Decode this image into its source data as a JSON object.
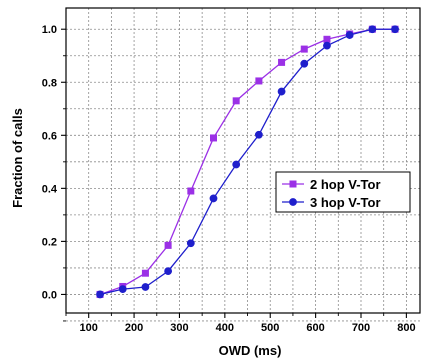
{
  "chart_data": {
    "type": "line",
    "xlabel": "OWD (ms)",
    "ylabel": "Fraction of calls",
    "xlim": [
      50,
      830
    ],
    "ylim": [
      -0.07,
      1.08
    ],
    "xticks": [
      100,
      200,
      300,
      400,
      500,
      600,
      700,
      800
    ],
    "yticks": [
      0.0,
      0.2,
      0.4,
      0.6,
      0.8,
      1.0
    ],
    "xtick_labels": [
      "100",
      "200",
      "300",
      "400",
      "500",
      "600",
      "700",
      "800"
    ],
    "ytick_labels": [
      "0.0",
      "0.2",
      "0.4",
      "0.6",
      "0.8",
      "1.0"
    ],
    "grid": true,
    "legend_position": "center-right",
    "series": [
      {
        "name": "2 hop V-Tor",
        "color": "#9b30e6",
        "marker": "square",
        "x": [
          125,
          175,
          225,
          275,
          325,
          375,
          425,
          475,
          525,
          575,
          625,
          675,
          725,
          775
        ],
        "y": [
          0.0,
          0.03,
          0.08,
          0.185,
          0.39,
          0.59,
          0.73,
          0.805,
          0.875,
          0.925,
          0.962,
          0.982,
          1.0,
          1.0
        ]
      },
      {
        "name": "3 hop V-Tor",
        "color": "#1f1fcc",
        "marker": "circle",
        "x": [
          125,
          175,
          225,
          275,
          325,
          375,
          425,
          475,
          525,
          575,
          625,
          675,
          725,
          775
        ],
        "y": [
          0.0,
          0.02,
          0.028,
          0.088,
          0.193,
          0.362,
          0.49,
          0.602,
          0.765,
          0.87,
          0.938,
          0.978,
          1.0,
          1.0
        ]
      }
    ]
  }
}
